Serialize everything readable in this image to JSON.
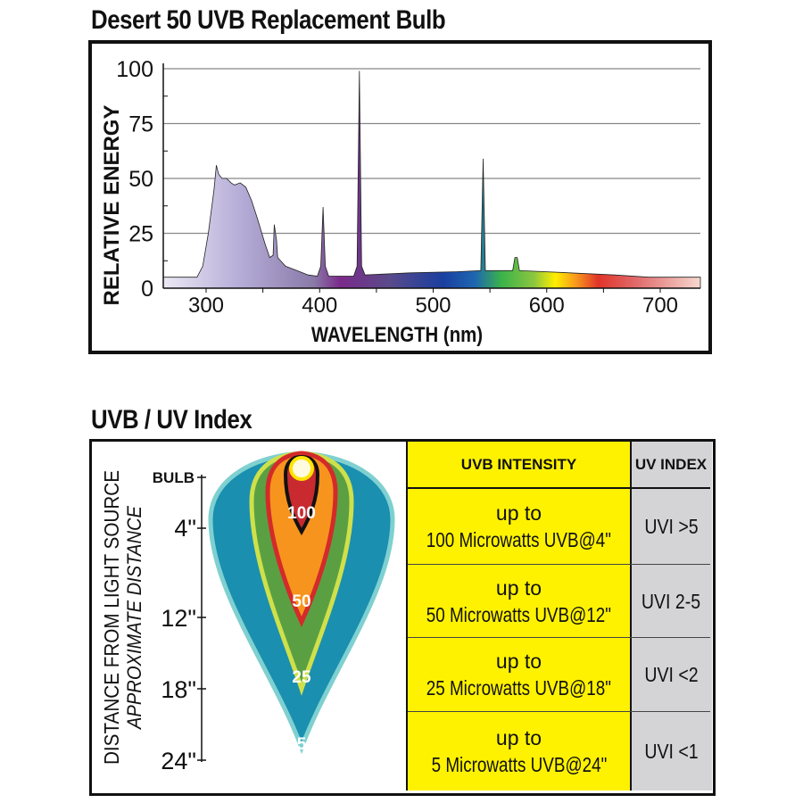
{
  "chart_data": [
    {
      "type": "area",
      "title": "Desert 50 UVB Replacement Bulb",
      "xlabel": "WAVELENGTH (nm)",
      "ylabel": "RELATIVE ENERGY",
      "xlim": [
        262,
        750
      ],
      "ylim": [
        0,
        100
      ],
      "xticks": [
        300,
        400,
        500,
        600,
        700
      ],
      "yticks": [
        0,
        25,
        50,
        75,
        100
      ],
      "grid": true,
      "fill": "spectrum gradient by wavelength",
      "x": [
        262,
        292,
        297,
        302,
        307,
        309,
        311,
        314,
        318,
        322,
        325,
        330,
        335,
        340,
        345,
        352,
        356,
        359,
        360,
        362,
        363,
        370,
        380,
        390,
        398,
        401,
        403,
        405,
        408,
        430,
        433,
        435,
        437,
        440,
        480,
        520,
        542,
        544,
        546,
        570,
        572,
        574,
        576,
        620,
        660,
        690,
        750
      ],
      "values": [
        5,
        5,
        10,
        25,
        45,
        56,
        52,
        50,
        50,
        48,
        47,
        48,
        46,
        40,
        32,
        20,
        14,
        15,
        29,
        22,
        14,
        10,
        8,
        6,
        5.5,
        10,
        37,
        10,
        5.5,
        5.5,
        10,
        99,
        10,
        6,
        7,
        7.5,
        8,
        59,
        8,
        8,
        14,
        14,
        8,
        7,
        6,
        5,
        5
      ]
    }
  ],
  "uv_index": {
    "title": "UVB / UV Index",
    "axis_label": "DISTANCE FROM LIGHT SOURCE",
    "axis_sublabel": "APPROXIMATE DISTANCE",
    "bulb_label": "BULB",
    "distances": [
      "4\"",
      "12\"",
      "18\"",
      "24\""
    ],
    "zones": [
      {
        "label": "100",
        "color": "#f7941d"
      },
      {
        "label": "50",
        "color": "#5aa043"
      },
      {
        "label": "25",
        "color": "#1a8fb0"
      },
      {
        "label": "5",
        "color": "#1a8fb0"
      }
    ],
    "table": {
      "header_intensity": "UVB INTENSITY",
      "header_index": "UV INDEX",
      "rows": [
        {
          "line1": "up to",
          "line2": "100 Microwatts UVB@4\"",
          "index": "UVI >5"
        },
        {
          "line1": "up to",
          "line2": "50 Microwatts UVB@12\"",
          "index": "UVI 2-5"
        },
        {
          "line1": "up to",
          "line2": "25 Microwatts UVB@18\"",
          "index": "UVI <2"
        },
        {
          "line1": "up to",
          "line2": "5 Microwatts UVB@24\"",
          "index": "UVI <1"
        }
      ],
      "yellow": "#fff200",
      "grey": "#d4d4d6"
    }
  }
}
